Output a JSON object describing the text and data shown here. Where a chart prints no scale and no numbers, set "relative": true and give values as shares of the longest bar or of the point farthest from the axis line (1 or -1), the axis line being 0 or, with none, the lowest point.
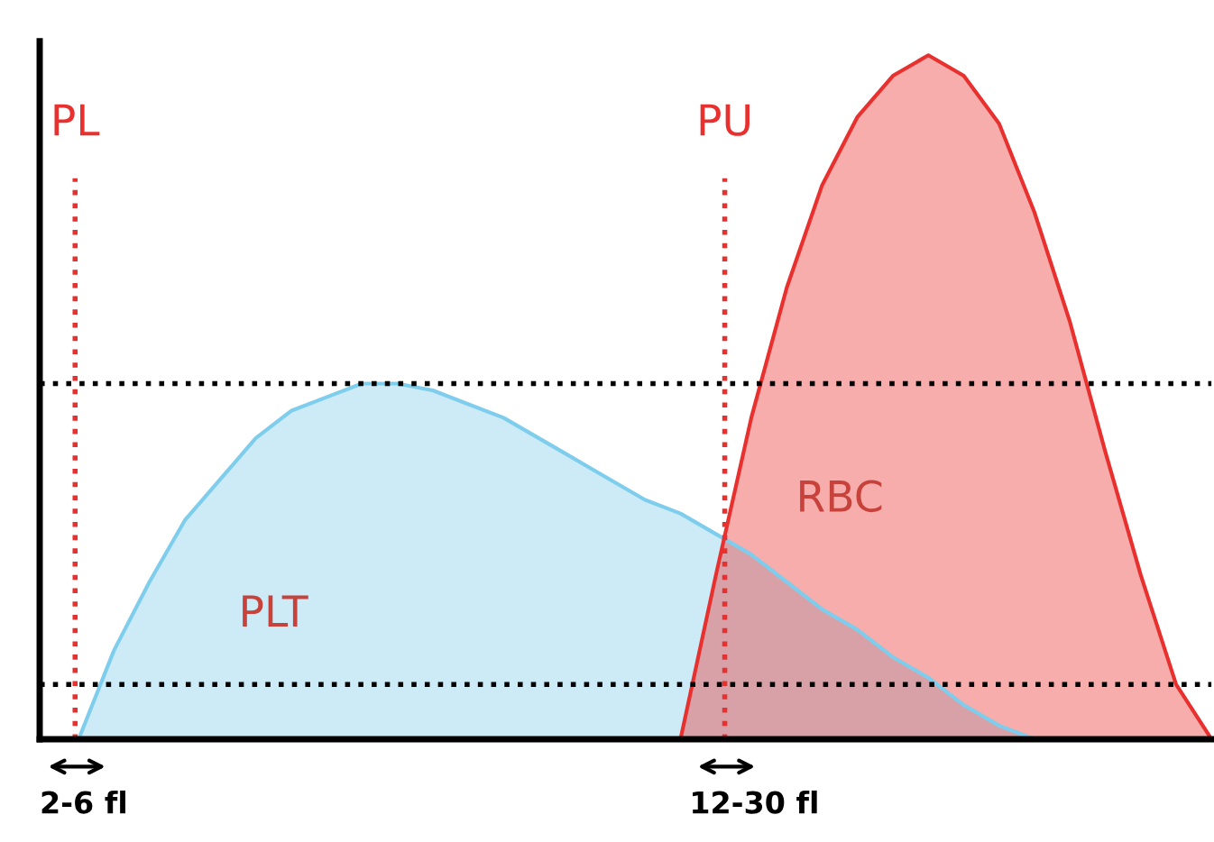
{
  "chart_data": {
    "type": "area",
    "relative": true,
    "legend": false,
    "categories": [
      null,
      null,
      null,
      null,
      null,
      null,
      null,
      null,
      null,
      null,
      null,
      null,
      null,
      null,
      null,
      null,
      null,
      null,
      null,
      null,
      null,
      null,
      null,
      null,
      null,
      null,
      null,
      null,
      null,
      null,
      null,
      null,
      null,
      null
    ],
    "series": [
      {
        "name": "PLT",
        "color": "#7fcdec",
        "values": [
          null,
          0,
          0.13,
          0.23,
          0.32,
          0.38,
          0.44,
          0.48,
          0.5,
          0.52,
          0.52,
          0.51,
          0.49,
          0.47,
          0.44,
          0.41,
          0.38,
          0.35,
          0.33,
          0.3,
          0.27,
          0.23,
          0.19,
          0.16,
          0.12,
          0.09,
          0.05,
          0.02,
          0,
          null,
          null,
          null,
          null,
          null
        ]
      },
      {
        "name": "RBC",
        "color": "#e8312f",
        "values": [
          null,
          null,
          null,
          null,
          null,
          null,
          null,
          null,
          null,
          null,
          null,
          null,
          null,
          null,
          null,
          null,
          null,
          null,
          0,
          0.24,
          0.47,
          0.66,
          0.81,
          0.91,
          0.97,
          1,
          0.97,
          0.9,
          0.77,
          0.61,
          0.42,
          0.24,
          0.08,
          0
        ]
      }
    ],
    "ref_lines": [
      {
        "axis": "y",
        "value": 0.52,
        "label": null,
        "color": "#000000",
        "line_style": "dotted"
      },
      {
        "axis": "y",
        "value": 0.08,
        "label": null,
        "color": "#000000",
        "line_style": "dotted"
      }
    ],
    "annotations": [
      "PL",
      "PU",
      "2-6 fl",
      "12-30 fl"
    ]
  }
}
